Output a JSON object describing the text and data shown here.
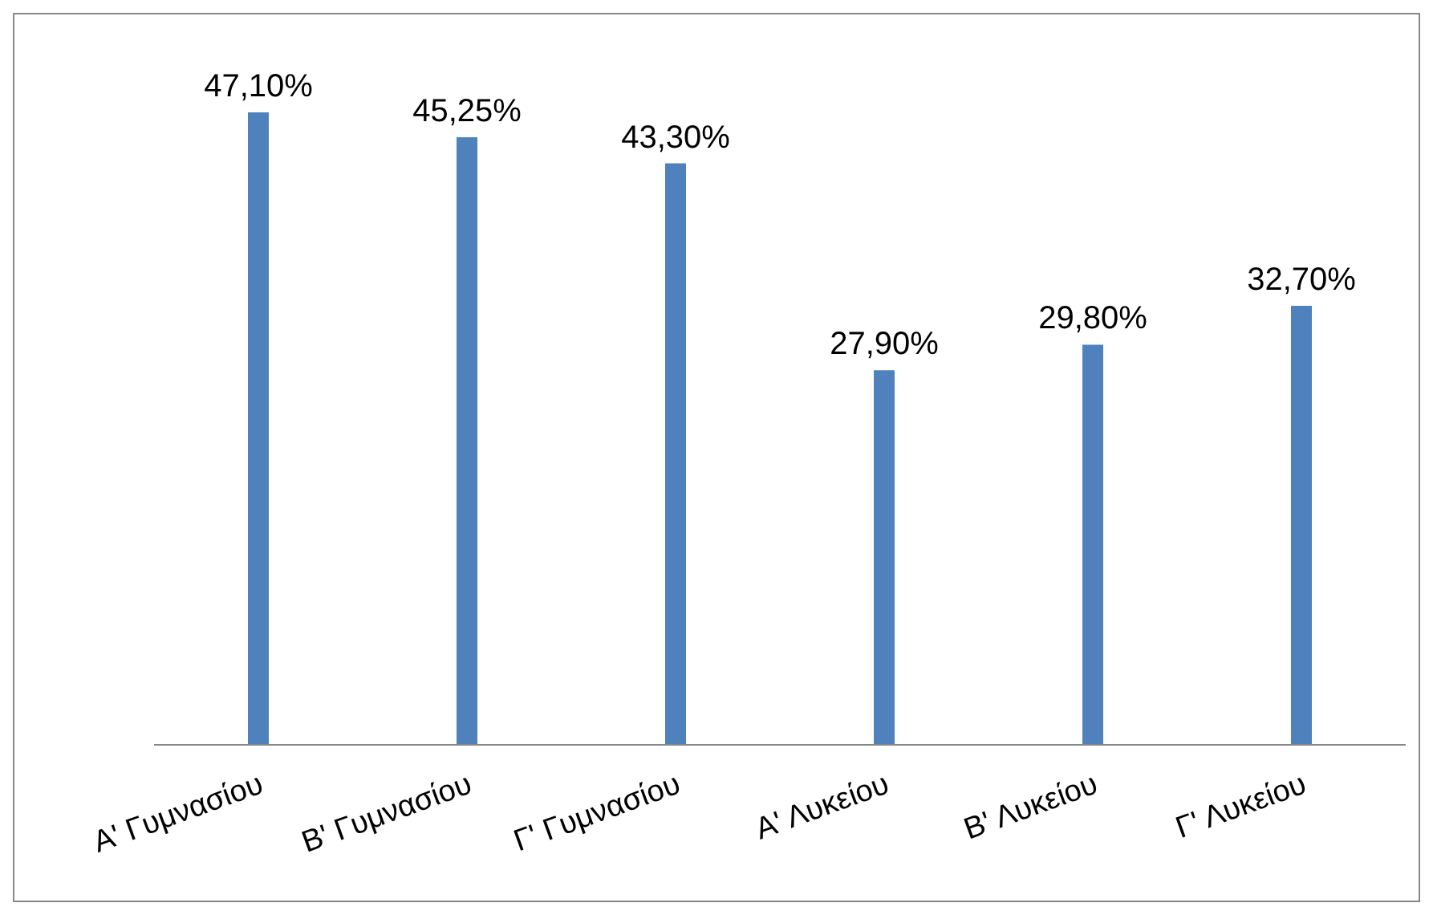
{
  "chart_data": {
    "type": "bar",
    "categories": [
      "Α' Γυμνασίου",
      "Β' Γυμνασίου",
      "Γ' Γυμνασίου",
      "Α' Λυκείου",
      "Β' Λυκείου",
      "Γ' Λυκείου"
    ],
    "values": [
      47.1,
      45.25,
      43.3,
      27.9,
      29.8,
      32.7
    ],
    "value_labels": [
      "47,10%",
      "45,25%",
      "43,30%",
      "27,90%",
      "29,80%",
      "32,70%"
    ],
    "color": "#4f81bd"
  }
}
